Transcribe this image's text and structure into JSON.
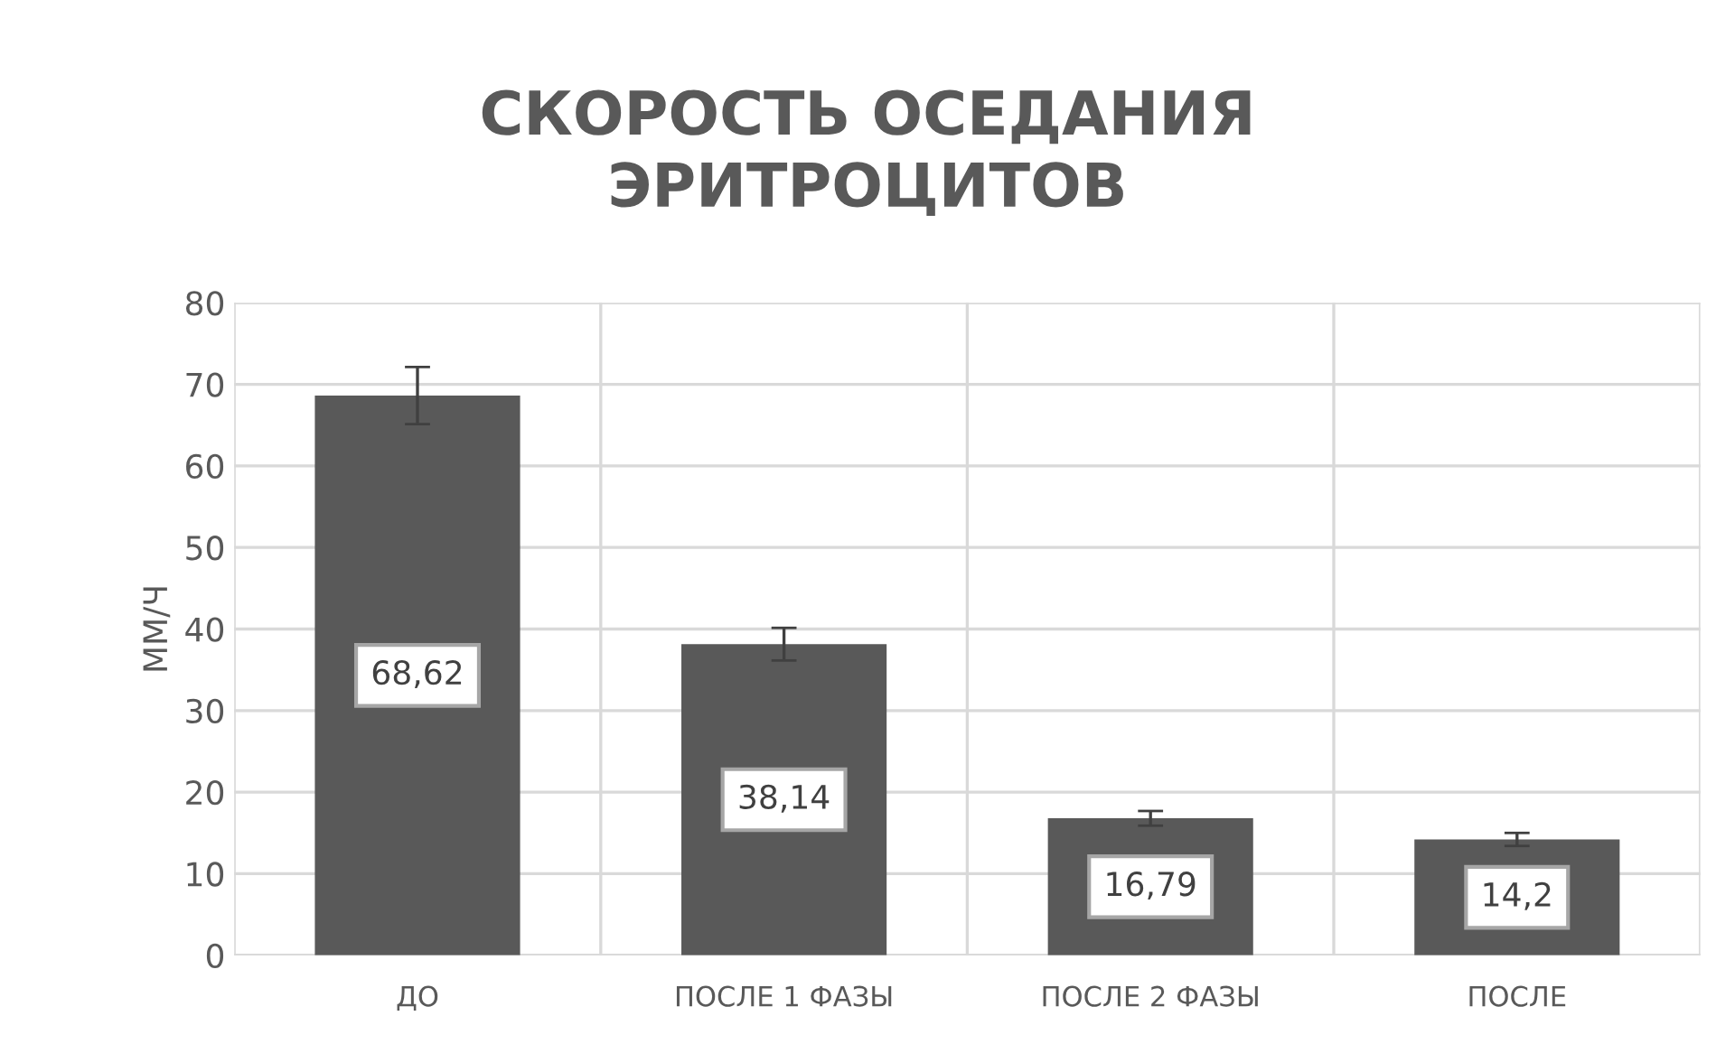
{
  "chart_data": {
    "type": "bar",
    "title": "СКОРОСТЬ ОСЕДАНИЯ\nЭРИТРОЦИТОВ",
    "ylabel": "ММ/Ч",
    "categories": [
      "ДО",
      "ПОСЛЕ 1 ФАЗЫ",
      "ПОСЛЕ 2 ФАЗЫ",
      "ПОСЛЕ"
    ],
    "values": [
      68.62,
      38.14,
      16.79,
      14.2
    ],
    "value_labels": [
      "68,62",
      "38,14",
      "16,79",
      "14,2"
    ],
    "errors": [
      3.5,
      2,
      0.9,
      0.8
    ],
    "color": "#595959",
    "ylim": [
      0,
      80
    ],
    "yticks": [
      0,
      10,
      20,
      30,
      40,
      50,
      60,
      70,
      80
    ],
    "grid": true
  }
}
